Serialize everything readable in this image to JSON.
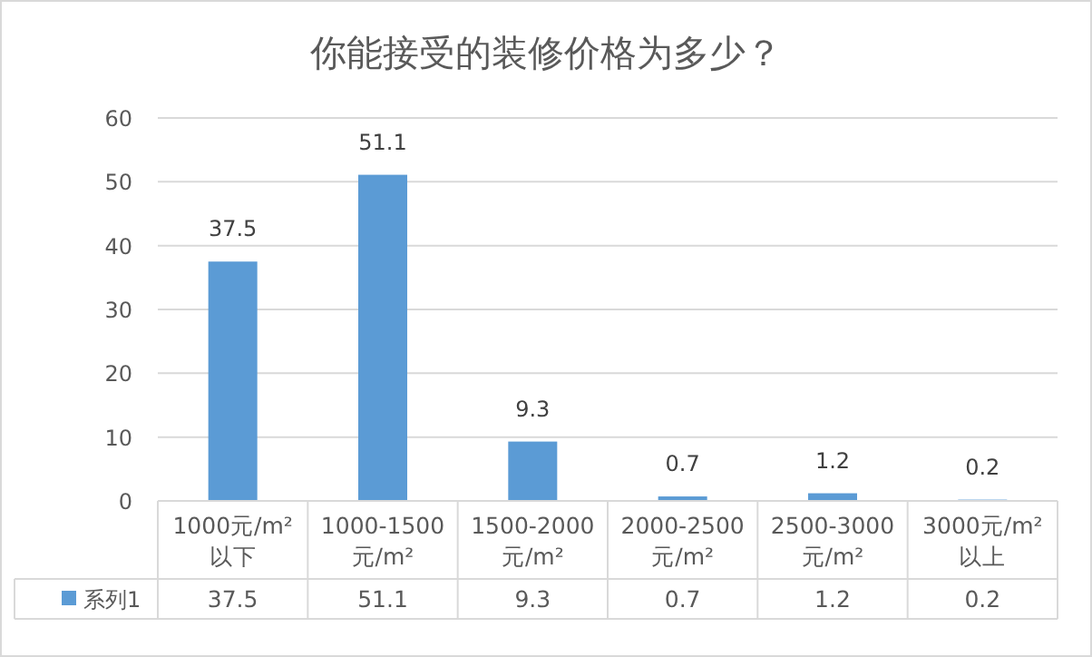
{
  "chart_data": {
    "type": "bar",
    "title": "你能接受的装修价格为多少？",
    "categories": [
      "1000元/m²\n以下",
      "1000-1500\n元/m²",
      "1500-2000\n元/m²",
      "2000-2500\n元/m²",
      "2500-3000\n元/m²",
      "3000元/m²\n以上"
    ],
    "series": [
      {
        "name": "系列1",
        "color": "#5b9bd5",
        "values": [
          37.5,
          51.1,
          9.3,
          0.7,
          1.2,
          0.2
        ],
        "value_labels": [
          "37.5",
          "51.1",
          "9.3",
          "0.7",
          "1.2",
          "0.2"
        ]
      }
    ],
    "ylim": [
      0,
      60
    ],
    "yticks": [
      0,
      10,
      20,
      30,
      40,
      50,
      60
    ],
    "grid": "y",
    "legend": "bottom",
    "annotations": [
      "37.5",
      "51.1",
      "9.3",
      "0.7",
      "1.2",
      "0.2"
    ]
  }
}
